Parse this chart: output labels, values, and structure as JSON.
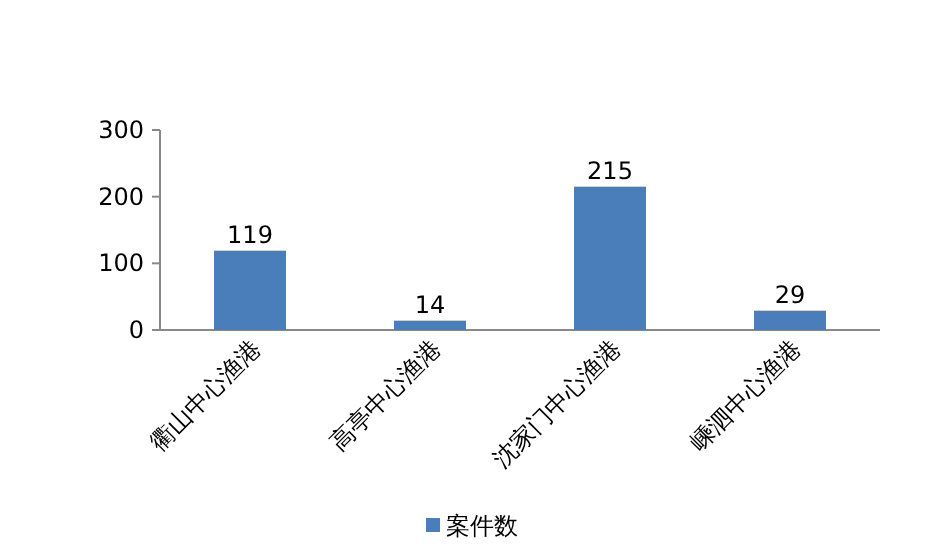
{
  "chart_data": {
    "type": "bar",
    "categories": [
      "衢山中心渔港",
      "高亭中心渔港",
      "沈家门中心渔港",
      "嵊泗中心渔港"
    ],
    "series": [
      {
        "name": "案件数",
        "color": "#4a7ebb",
        "values": [
          119,
          14,
          215,
          29
        ]
      }
    ],
    "ylim": [
      0,
      300
    ],
    "yticks": [
      0,
      100,
      200,
      300
    ],
    "data_labels": true,
    "legend": "bottom",
    "grid": false
  }
}
